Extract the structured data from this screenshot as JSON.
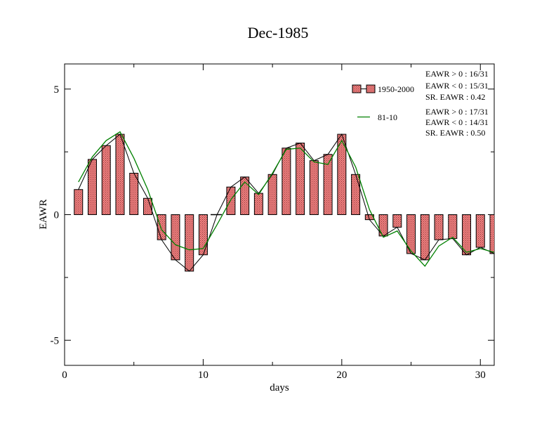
{
  "chart_data": {
    "type": "bar",
    "title": "Dec-1985",
    "xlabel": "days",
    "ylabel": "EAWR",
    "xlim": [
      0,
      31
    ],
    "ylim": [
      -6,
      6
    ],
    "xticks": [
      0,
      10,
      20,
      30
    ],
    "yticks": [
      -5,
      0,
      5
    ],
    "grid": false,
    "legend_position": "top-right",
    "series": [
      {
        "name": "1950-2000",
        "kind": "bar",
        "color": "#f08080",
        "x": [
          1,
          2,
          3,
          4,
          5,
          6,
          7,
          8,
          9,
          10,
          11,
          12,
          13,
          14,
          15,
          16,
          17,
          18,
          19,
          20,
          21,
          22,
          23,
          24,
          25,
          26,
          27,
          28,
          29,
          30,
          31
        ],
        "values": [
          1.0,
          2.2,
          2.75,
          3.2,
          1.65,
          0.65,
          -1.0,
          -1.8,
          -2.25,
          -1.6,
          0.0,
          1.1,
          1.5,
          0.85,
          1.6,
          2.65,
          2.85,
          2.15,
          2.4,
          3.2,
          1.6,
          -0.2,
          -0.85,
          -0.5,
          -1.55,
          -1.8,
          -1.0,
          -0.95,
          -1.6,
          -1.3,
          -1.55
        ]
      },
      {
        "name": "81-10",
        "kind": "line",
        "color": "#008000",
        "x": [
          1,
          2,
          3,
          4,
          5,
          6,
          7,
          8,
          9,
          10,
          11,
          12,
          13,
          14,
          15,
          16,
          17,
          18,
          19,
          20,
          21,
          22,
          23,
          24,
          25,
          26,
          27,
          28,
          29,
          30,
          31
        ],
        "values": [
          1.3,
          2.3,
          2.95,
          3.3,
          2.25,
          1.0,
          -0.6,
          -1.2,
          -1.4,
          -1.35,
          -0.4,
          0.6,
          1.3,
          0.8,
          1.65,
          2.6,
          2.65,
          2.1,
          2.0,
          2.95,
          1.9,
          0.2,
          -0.9,
          -0.65,
          -1.45,
          -2.05,
          -1.25,
          -0.9,
          -1.5,
          -1.35,
          -1.5
        ]
      }
    ],
    "legend": [
      {
        "label": "1950-2000",
        "stats": [
          "EAWR > 0 : 16/31",
          "EAWR < 0 : 15/31",
          "SR. EAWR :  0.42"
        ]
      },
      {
        "label": "81-10",
        "stats": [
          "EAWR > 0 : 17/31",
          "EAWR < 0 : 14/31",
          "SR. EAWR :  0.50"
        ]
      }
    ]
  }
}
